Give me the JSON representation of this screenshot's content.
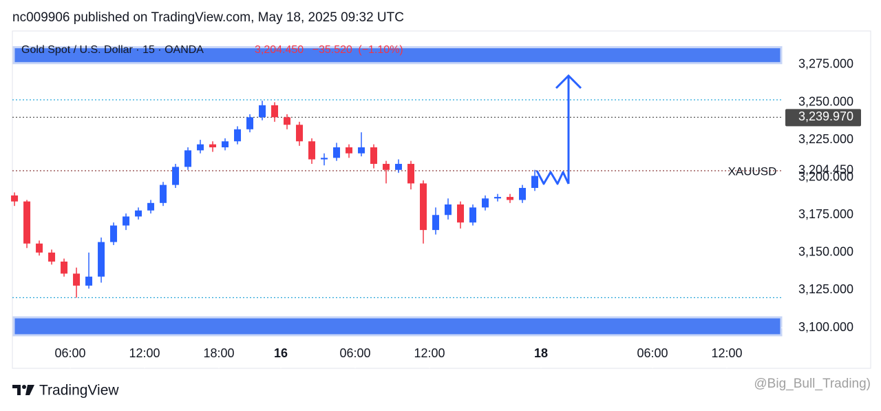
{
  "chart_data": {
    "type": "candlestick",
    "title": "nc009906 published on TradingView.com, May 18, 2025 09:32 UTC",
    "subtitle": "Gold Spot / U.S. Dollar · 15 · OANDA",
    "quote": {
      "price": "3,204.450",
      "change": "−35.520",
      "change_pct": "(−1.10%)",
      "color": "#f23645"
    },
    "symbol_label": "XAUUSD",
    "brand": "TradingView",
    "watermark": "@Big_Bull_Trading)",
    "up_color": "#2962ff",
    "down_color": "#f23645",
    "x": [
      1.5,
      2.5,
      3.5,
      4.5,
      5.5,
      6.5,
      7.5,
      8.5,
      9.5,
      10.5,
      11.5,
      12.5,
      13.5,
      14.5,
      15.5,
      16.5,
      17.5,
      18.5,
      19.5,
      20.5,
      21.5,
      22.5,
      23.5,
      24.5,
      25.5,
      26.5,
      27.5,
      28.5,
      29.5,
      30.5,
      31.5,
      32.5,
      33.5,
      34.5,
      35.5,
      36.5,
      37.5,
      38.5,
      39.5,
      40.5,
      41.5,
      42.5,
      43.5
    ],
    "open": [
      3188,
      3184,
      3156,
      3150,
      3144,
      3136,
      3128,
      3134,
      3157,
      3168,
      3174,
      3178,
      3183,
      3195,
      3207,
      3218,
      3222,
      3220,
      3224,
      3232,
      3240,
      3248,
      3240,
      3235,
      3224,
      3212,
      3213,
      3220,
      3216,
      3220,
      3209,
      3205,
      3209,
      3196,
      3165,
      3175,
      3182,
      3170,
      3180,
      3186,
      3187,
      3185,
      3193
    ],
    "high": [
      3190,
      3185,
      3158,
      3152,
      3146,
      3140,
      3150,
      3160,
      3170,
      3176,
      3180,
      3185,
      3197,
      3209,
      3220,
      3225,
      3224,
      3226,
      3234,
      3242,
      3251,
      3250,
      3242,
      3237,
      3226,
      3216,
      3223,
      3222,
      3230,
      3222,
      3211,
      3212,
      3211,
      3198,
      3180,
      3186,
      3184,
      3182,
      3188,
      3189,
      3189,
      3195,
      3205
    ],
    "low": [
      3181,
      3153,
      3148,
      3142,
      3134,
      3120,
      3126,
      3130,
      3155,
      3165,
      3172,
      3176,
      3181,
      3193,
      3205,
      3216,
      3217,
      3218,
      3222,
      3230,
      3238,
      3237,
      3232,
      3221,
      3209,
      3208,
      3211,
      3213,
      3214,
      3206,
      3196,
      3203,
      3192,
      3156,
      3162,
      3172,
      3166,
      3168,
      3178,
      3184,
      3183,
      3183,
      3191
    ],
    "close": [
      3184,
      3156,
      3150,
      3144,
      3136,
      3128,
      3134,
      3157,
      3168,
      3174,
      3178,
      3183,
      3195,
      3207,
      3218,
      3222,
      3220,
      3224,
      3232,
      3240,
      3248,
      3240,
      3235,
      3224,
      3212,
      3213,
      3220,
      3216,
      3220,
      3209,
      3205,
      3209,
      3196,
      3165,
      3175,
      3182,
      3170,
      3180,
      3186,
      3187,
      3185,
      3193,
      3201
    ],
    "xlim": [
      1.33,
      63.39
    ],
    "xticks": [
      {
        "value": 6,
        "label": "06:00"
      },
      {
        "value": 12,
        "label": "12:00"
      },
      {
        "value": 18,
        "label": "18:00"
      },
      {
        "value": 23,
        "label": "16"
      },
      {
        "value": 29,
        "label": "06:00"
      },
      {
        "value": 35,
        "label": "12:00"
      },
      {
        "value": 44,
        "label": "18"
      },
      {
        "value": 53,
        "label": "06:00"
      },
      {
        "value": 59,
        "label": "12:00"
      }
    ],
    "ylim": [
      3073,
      3297.4
    ],
    "yticks": [
      {
        "value": 3100,
        "label": "3,100.000"
      },
      {
        "value": 3125,
        "label": "3,125.000"
      },
      {
        "value": 3150,
        "label": "3,150.000"
      },
      {
        "value": 3175,
        "label": "3,175.000"
      },
      {
        "value": 3200,
        "label": "3,200.000"
      },
      {
        "value": 3225,
        "label": "3,225.000"
      },
      {
        "value": 3250,
        "label": "3,250.000"
      },
      {
        "value": 3275,
        "label": "3,275.000"
      }
    ],
    "zones": [
      {
        "from": 3276,
        "to": 3286.6,
        "color": "#4a7cf3"
      },
      {
        "from": 3095,
        "to": 3106.9,
        "color": "#4a7cf3"
      }
    ],
    "levels": [
      {
        "value": 3251.6,
        "color": "#26a6d9"
      },
      {
        "value": 3239.97,
        "color": "#555555"
      },
      {
        "value": 3204.45,
        "color": "#8a3a3a"
      },
      {
        "value": 3120,
        "color": "#26a6d9"
      }
    ],
    "price_labels": [
      {
        "value": 3239.97,
        "label": "3,239.970"
      },
      {
        "value": 3204.45,
        "label": "3,204.450"
      }
    ]
  }
}
